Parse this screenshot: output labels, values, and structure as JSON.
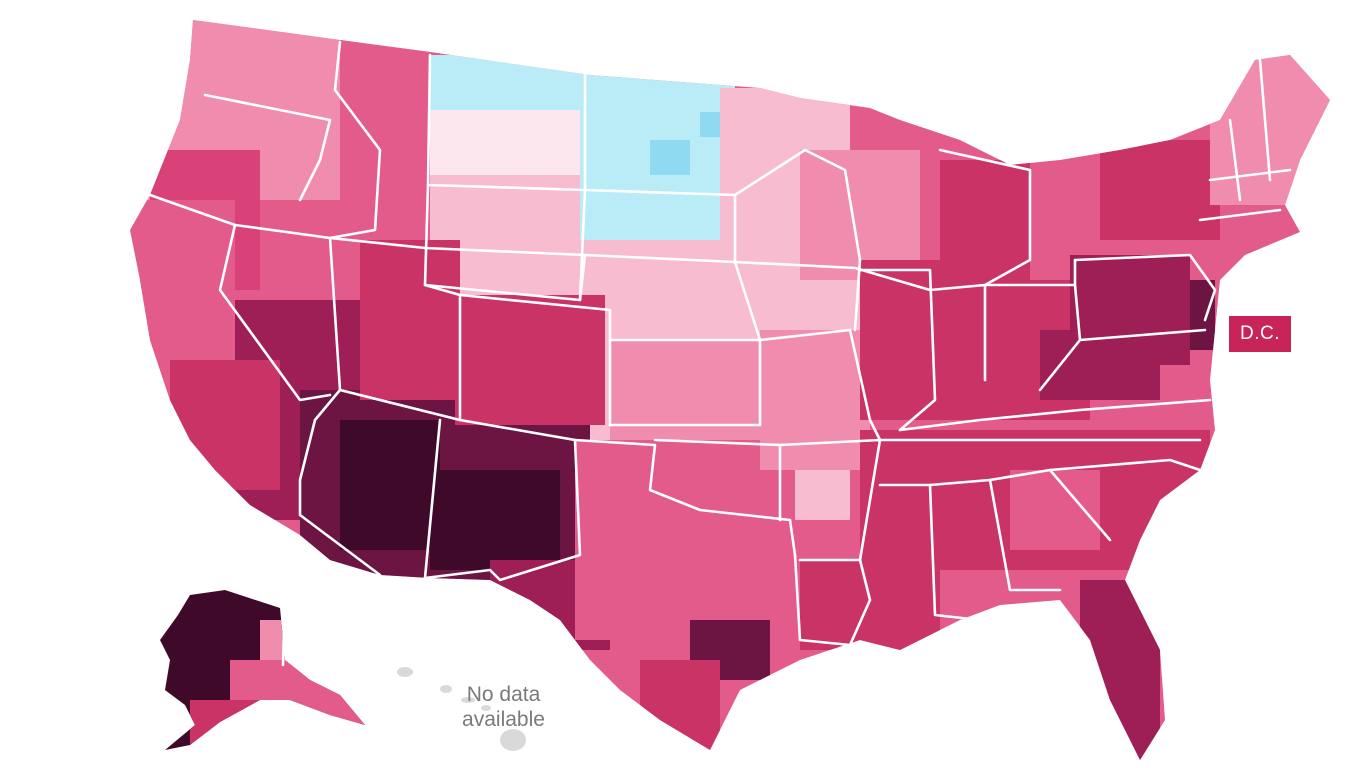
{
  "map": {
    "colors": {
      "negative": "#b9ecf7",
      "negative_strong": "#8fdaf0",
      "scale": [
        "#fde7ee",
        "#f8bcd0",
        "#f08cad",
        "#e25b8a",
        "#c93366",
        "#9e1f55",
        "#6c1543",
        "#3f0a2a"
      ]
    },
    "dc_label": "D.C.",
    "inset_note": "No data\navailable"
  }
}
